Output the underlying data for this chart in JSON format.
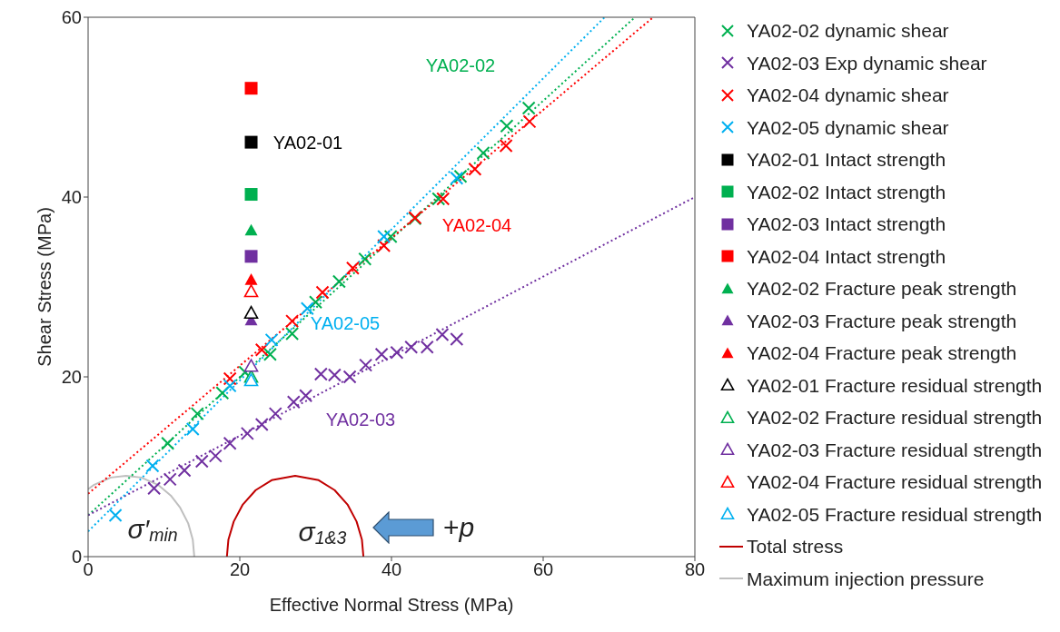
{
  "chart_data": {
    "type": "scatter",
    "xlabel": "Effective Normal Stress (MPa)",
    "ylabel": "Shear Stress (MPa)",
    "xlim": [
      0,
      80
    ],
    "xticks": [
      0,
      20,
      40,
      60,
      80
    ],
    "ylim": [
      0,
      60
    ],
    "yticks": [
      0,
      20,
      40,
      60
    ],
    "legend": "right",
    "series": [
      {
        "name": "YA02-02 dynamic shear",
        "marker": "cross",
        "color": "#00b050",
        "x": [
          10.5,
          14.4,
          17.7,
          20.7,
          24.0,
          26.9,
          30.0,
          33.1,
          36.5,
          39.9,
          43.1,
          46.2,
          49.1,
          52.1,
          55.2,
          58.1
        ],
        "values": [
          12.6,
          15.9,
          18.2,
          20.5,
          22.5,
          24.8,
          28.3,
          30.6,
          33.1,
          35.6,
          37.6,
          39.8,
          42.3,
          44.9,
          47.9,
          49.9
        ]
      },
      {
        "name": "YA02-03 Exp dynamic shear",
        "marker": "cross",
        "color": "#7030a0",
        "x": [
          8.7,
          10.8,
          12.7,
          15.0,
          16.8,
          18.7,
          21.0,
          22.9,
          24.7,
          27.1,
          28.7,
          30.7,
          32.5,
          34.5,
          36.6,
          38.7,
          40.7,
          42.6,
          44.7,
          46.7,
          48.6
        ],
        "values": [
          7.6,
          8.6,
          9.6,
          10.6,
          11.2,
          12.6,
          13.7,
          14.7,
          15.9,
          17.2,
          17.9,
          20.3,
          20.2,
          20.0,
          21.3,
          22.5,
          22.7,
          23.3,
          23.3,
          24.7,
          24.2
        ]
      },
      {
        "name": "YA02-04 dynamic shear",
        "marker": "cross",
        "color": "#ff0000",
        "x": [
          18.7,
          22.9,
          26.9,
          30.9,
          34.9,
          39.0,
          43.1,
          46.8,
          51.0,
          55.1,
          58.2
        ],
        "values": [
          19.8,
          23.0,
          26.2,
          29.4,
          32.1,
          34.6,
          37.7,
          39.8,
          43.1,
          45.7,
          48.4
        ]
      },
      {
        "name": "YA02-05 dynamic shear",
        "marker": "cross",
        "color": "#00b0f0",
        "x": [
          3.6,
          8.5,
          13.8,
          18.7,
          24.2,
          28.9,
          39.0,
          48.6
        ],
        "values": [
          4.6,
          10.1,
          14.2,
          19.0,
          24.1,
          27.6,
          35.6,
          42.1
        ]
      },
      {
        "name": "YA02-01 Intact strength",
        "marker": "square",
        "color": "#000000",
        "x": [
          21.5
        ],
        "values": [
          46.1
        ]
      },
      {
        "name": "YA02-02 Intact strength",
        "marker": "square",
        "color": "#00b050",
        "x": [
          21.5
        ],
        "values": [
          40.3
        ]
      },
      {
        "name": "YA02-03 Intact strength",
        "marker": "square",
        "color": "#7030a0",
        "x": [
          21.5
        ],
        "values": [
          33.4
        ]
      },
      {
        "name": "YA02-04 Intact strength",
        "marker": "square",
        "color": "#ff0000",
        "x": [
          21.5
        ],
        "values": [
          52.1
        ]
      },
      {
        "name": "YA02-02 Fracture peak strength",
        "marker": "triangle",
        "color": "#00b050",
        "x": [
          21.5
        ],
        "values": [
          36.3
        ]
      },
      {
        "name": "YA02-03 Fracture peak strength",
        "marker": "triangle",
        "color": "#7030a0",
        "x": [
          21.5
        ],
        "values": [
          26.3
        ]
      },
      {
        "name": "YA02-04 Fracture peak strength",
        "marker": "triangle",
        "color": "#ff0000",
        "x": [
          21.5
        ],
        "values": [
          30.8
        ]
      },
      {
        "name": "YA02-01 Fracture residual strength",
        "marker": "triangle-open",
        "color": "#000000",
        "x": [
          21.5
        ],
        "values": [
          27.1
        ]
      },
      {
        "name": "YA02-02 Fracture residual strength",
        "marker": "triangle-open",
        "color": "#00b050",
        "x": [
          21.5
        ],
        "values": [
          20.0
        ]
      },
      {
        "name": "YA02-03 Fracture residual strength",
        "marker": "triangle-open",
        "color": "#7030a0",
        "x": [
          21.5
        ],
        "values": [
          21.2
        ]
      },
      {
        "name": "YA02-04 Fracture residual strength",
        "marker": "triangle-open",
        "color": "#ff0000",
        "x": [
          21.5
        ],
        "values": [
          29.5
        ]
      },
      {
        "name": "YA02-05 Fracture residual strength",
        "marker": "triangle-open",
        "color": "#00b0f0",
        "x": [
          21.5
        ],
        "values": [
          19.6
        ]
      },
      {
        "name": "Total stress",
        "type": "line",
        "marker": "none",
        "line_style": "solid",
        "color": "#c00000",
        "x": [
          18.3,
          18.5,
          19.2,
          20.4,
          22.1,
          24.2,
          27.3,
          30.4,
          32.5,
          34.2,
          35.4,
          36.1,
          36.3
        ],
        "values": [
          0,
          1.9,
          3.9,
          5.8,
          7.4,
          8.5,
          9.0,
          8.5,
          7.4,
          5.8,
          3.9,
          1.9,
          0
        ]
      },
      {
        "name": "Maximum injection pressure",
        "type": "line",
        "marker": "none",
        "line_style": "solid",
        "color": "#bfbfbf",
        "x": [
          0,
          0.8,
          1.9,
          3.0,
          5.0,
          7.0,
          8.1,
          9.2,
          10.9,
          12.1,
          13.2,
          13.8,
          14.0
        ],
        "values": [
          7.5,
          8.0,
          8.4,
          8.8,
          9.0,
          8.8,
          8.4,
          8.0,
          6.8,
          5.5,
          3.7,
          1.9,
          0
        ]
      },
      {
        "type": "line",
        "marker": "none",
        "line_style": "dotted",
        "color": "#00b050",
        "x": [
          0,
          72.1
        ],
        "values": [
          4.6,
          60
        ]
      },
      {
        "type": "line",
        "marker": "none",
        "line_style": "dotted",
        "color": "#7030a0",
        "x": [
          0,
          80
        ],
        "values": [
          4.6,
          40
        ]
      },
      {
        "type": "line",
        "marker": "none",
        "line_style": "dotted",
        "color": "#ff0000",
        "x": [
          0,
          74.5
        ],
        "values": [
          7.0,
          60
        ]
      },
      {
        "type": "line",
        "marker": "none",
        "line_style": "dotted",
        "color": "#00b0f0",
        "x": [
          0,
          68.1
        ],
        "values": [
          2.8,
          60
        ]
      }
    ],
    "annotations": [
      "YA02-01",
      "YA02-02",
      "YA02-04",
      "YA02-05",
      "YA02-03",
      "σ′$_{min}$",
      "σ$_{1&3}$",
      "+p"
    ]
  }
}
